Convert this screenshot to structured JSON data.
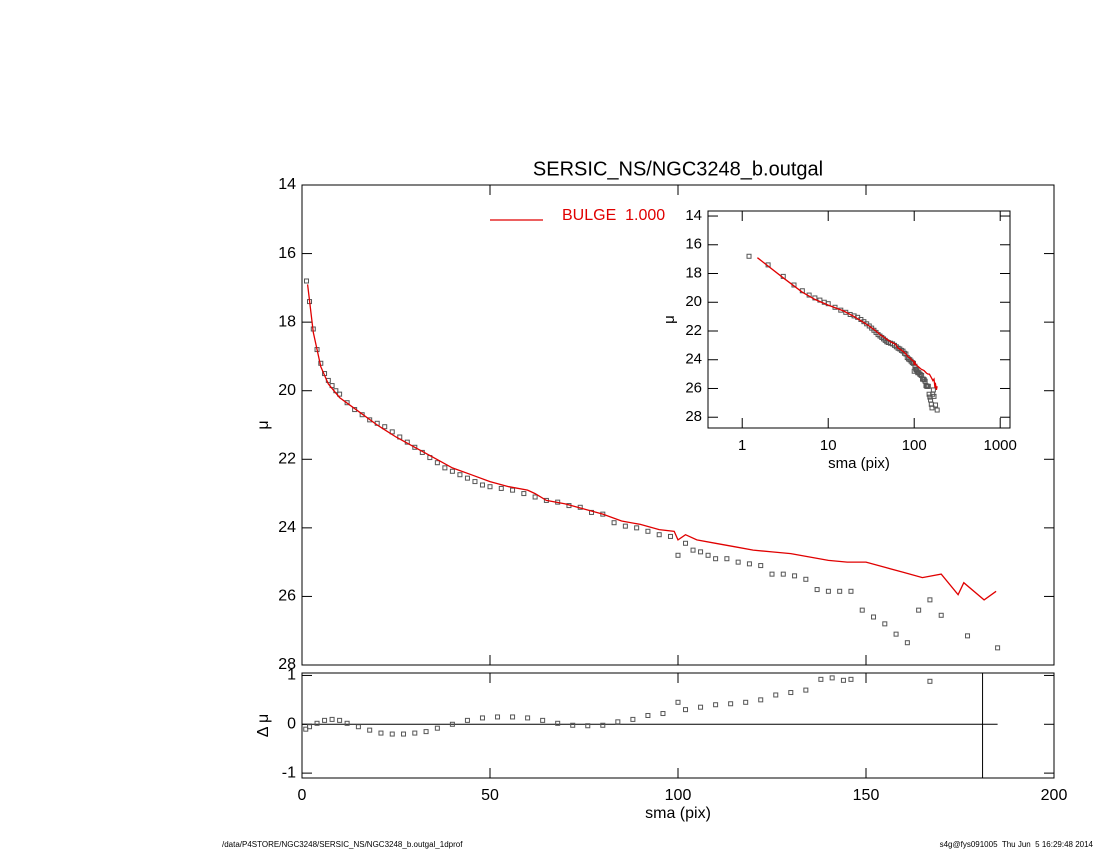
{
  "footer": {
    "left": "/data/P4STORE/NGC3248/SERSIC_NS/NGC3248_b.outgal_1dprof",
    "right": "s4g@fys091005  Thu Jun  5 16:29:48 2014"
  },
  "chart_data": [
    {
      "type": "scatter",
      "title": "SERSIC_NS/NGC3248_b.outgal",
      "ylabel": "μ",
      "ylim": [
        14,
        28
      ],
      "yticks": [
        14,
        16,
        18,
        20,
        22,
        24,
        26,
        28
      ],
      "legend": "top",
      "series": [
        {
          "color": "#555555",
          "x": [
            1.2,
            2,
            3,
            4,
            5,
            6,
            7,
            8,
            9,
            10,
            12,
            14,
            16,
            18,
            20,
            22,
            24,
            26,
            28,
            30,
            32,
            34,
            36,
            38,
            40,
            42,
            44,
            46,
            48,
            50,
            53,
            56,
            59,
            62,
            65,
            68,
            71,
            74,
            77,
            80,
            83,
            86,
            89,
            92,
            95,
            98,
            100,
            102,
            104,
            106,
            108,
            110,
            113,
            116,
            119,
            122,
            125,
            128,
            131,
            134,
            137,
            140,
            143,
            146,
            149,
            152,
            155,
            158,
            161,
            164,
            167,
            170,
            177,
            185
          ],
          "values": [
            16.8,
            17.4,
            18.2,
            18.8,
            19.2,
            19.5,
            19.7,
            19.85,
            20.0,
            20.1,
            20.35,
            20.55,
            20.7,
            20.85,
            20.95,
            21.05,
            21.2,
            21.35,
            21.5,
            21.65,
            21.8,
            21.95,
            22.1,
            22.25,
            22.35,
            22.45,
            22.55,
            22.65,
            22.75,
            22.8,
            22.85,
            22.9,
            23.0,
            23.1,
            23.2,
            23.25,
            23.35,
            23.4,
            23.55,
            23.6,
            23.85,
            23.95,
            24.0,
            24.1,
            24.2,
            24.25,
            24.8,
            24.45,
            24.65,
            24.7,
            24.8,
            24.9,
            24.9,
            25.0,
            25.05,
            25.1,
            25.35,
            25.35,
            25.4,
            25.5,
            25.8,
            25.85,
            25.85,
            25.85,
            26.4,
            26.6,
            26.8,
            27.1,
            27.35,
            26.4,
            26.1,
            26.55,
            27.15,
            27.5
          ]
        },
        {
          "name": "BULGE  1.000",
          "color": "#e00000",
          "line": true,
          "x": [
            1.5,
            3,
            5,
            7,
            10,
            15,
            20,
            25,
            30,
            35,
            40,
            45,
            50,
            55,
            60,
            62,
            65,
            70,
            75,
            80,
            85,
            90,
            95,
            99,
            100,
            102,
            105,
            110,
            115,
            120,
            125,
            130,
            135,
            140,
            145,
            150,
            155,
            160,
            165,
            170,
            174.5,
            176,
            181.4,
            184.6
          ],
          "values": [
            16.9,
            18.3,
            19.3,
            19.8,
            20.2,
            20.6,
            21.0,
            21.35,
            21.65,
            21.95,
            22.25,
            22.45,
            22.65,
            22.8,
            22.9,
            23.0,
            23.2,
            23.3,
            23.45,
            23.6,
            23.8,
            23.9,
            24.05,
            24.1,
            24.35,
            24.2,
            24.35,
            24.45,
            24.55,
            24.65,
            24.7,
            24.75,
            24.85,
            24.95,
            25.0,
            25.0,
            25.15,
            25.3,
            25.45,
            25.35,
            25.95,
            25.6,
            26.1,
            25.85
          ]
        }
      ]
    },
    {
      "type": "scatter",
      "xlabel": "sma (pix)",
      "ylabel": "Δ μ",
      "xlim": [
        0,
        200
      ],
      "xticks": [
        0,
        50,
        100,
        150,
        200
      ],
      "ylim": [
        -1.1,
        1.05
      ],
      "yticks": [
        1,
        0,
        -1
      ],
      "hline": 0,
      "vline": 181,
      "series": [
        {
          "color": "#555555",
          "x": [
            1,
            2,
            4,
            6,
            8,
            10,
            12,
            15,
            18,
            21,
            24,
            27,
            30,
            33,
            36,
            40,
            44,
            48,
            52,
            56,
            60,
            64,
            68,
            72,
            76,
            80,
            84,
            88,
            92,
            96,
            100,
            102,
            106,
            110,
            114,
            118,
            122,
            126,
            130,
            134,
            138,
            141,
            144,
            146,
            167
          ],
          "values": [
            -0.1,
            -0.05,
            0.02,
            0.08,
            0.1,
            0.08,
            0.02,
            -0.05,
            -0.12,
            -0.18,
            -0.2,
            -0.2,
            -0.18,
            -0.15,
            -0.08,
            0.0,
            0.08,
            0.13,
            0.15,
            0.15,
            0.13,
            0.08,
            0.02,
            -0.02,
            -0.03,
            -0.02,
            0.05,
            0.1,
            0.18,
            0.22,
            0.45,
            0.3,
            0.35,
            0.4,
            0.42,
            0.45,
            0.5,
            0.6,
            0.65,
            0.7,
            0.92,
            0.95,
            0.9,
            0.92,
            0.88
          ]
        }
      ]
    },
    {
      "type": "scatter",
      "log_x": true,
      "xlabel": "sma (pix)",
      "ylabel": "μ",
      "xlim": [
        0.4,
        1300
      ],
      "xticks": [
        1,
        10,
        100,
        1000
      ],
      "ylim": [
        13.65,
        28.75
      ],
      "yticks": [
        14,
        16,
        18,
        20,
        22,
        24,
        26,
        28
      ]
    }
  ]
}
